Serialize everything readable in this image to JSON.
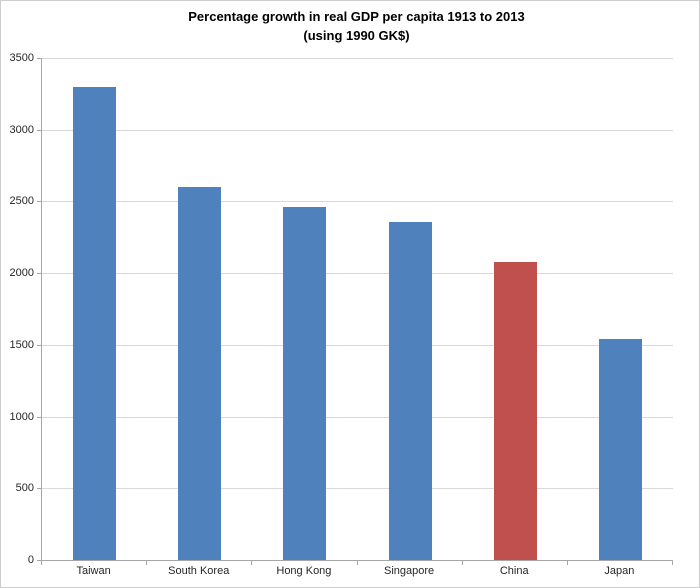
{
  "chart_data": {
    "type": "bar",
    "title": "Percentage growth in real GDP per capita 1913 to 2013",
    "subtitle": "(using 1990 GK$)",
    "categories": [
      "Taiwan",
      "South Korea",
      "Hong Kong",
      "Singapore",
      "China",
      "Japan"
    ],
    "values": [
      3300,
      2600,
      2460,
      2360,
      2080,
      1540
    ],
    "bar_colors": [
      "#4F81BD",
      "#4F81BD",
      "#4F81BD",
      "#4F81BD",
      "#C0504D",
      "#4F81BD"
    ],
    "xlabel": "",
    "ylabel": "",
    "ylim": [
      0,
      3500
    ],
    "yticks": [
      0,
      500,
      1000,
      1500,
      2000,
      2500,
      3000,
      3500
    ],
    "grid": "horizontal",
    "legend": "none"
  },
  "colors": {
    "default_bar": "#4F81BD",
    "highlight_bar": "#C0504D",
    "gridline": "#D9D9D9",
    "axis_line": "#A6A6A6",
    "text": "#262626",
    "title_text": "#000000",
    "chart_border": "#CDCDCD",
    "background": "#FFFFFF"
  }
}
